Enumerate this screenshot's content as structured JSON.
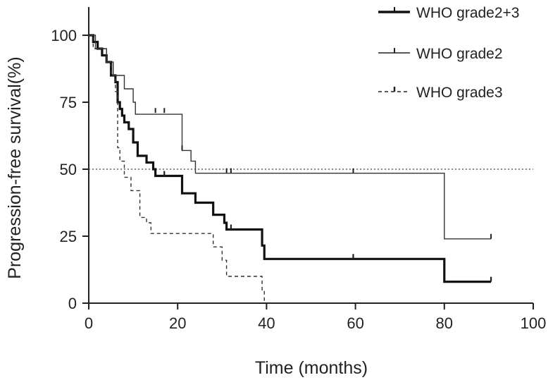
{
  "chart_data": {
    "type": "line",
    "subtype": "kaplan-meier step curve",
    "title": "",
    "xlabel": "Time (months)",
    "ylabel": "Progression-free survival(%)",
    "xlim": [
      0,
      100
    ],
    "ylim": [
      0,
      100
    ],
    "xticks": [
      "0",
      "20",
      "40",
      "60",
      "80",
      "100"
    ],
    "yticks": [
      "0",
      "25",
      "50",
      "75",
      "100"
    ],
    "grid": false,
    "legend_position": "top-right",
    "reference_line": {
      "y": 50,
      "style": "dotted"
    },
    "series": [
      {
        "name": "WHO grade2+3",
        "style": "solid-thick",
        "steps": [
          [
            0,
            100
          ],
          [
            1,
            97.5
          ],
          [
            2,
            95
          ],
          [
            3,
            92.5
          ],
          [
            4,
            90
          ],
          [
            5,
            85
          ],
          [
            6,
            82.5
          ],
          [
            6.5,
            75
          ],
          [
            7,
            72.5
          ],
          [
            7.5,
            70
          ],
          [
            8,
            67.5
          ],
          [
            9,
            65
          ],
          [
            10,
            60
          ],
          [
            11,
            55
          ],
          [
            13,
            52.5
          ],
          [
            14.5,
            50
          ],
          [
            15,
            47.5
          ],
          [
            21,
            41
          ],
          [
            24,
            37.5
          ],
          [
            28,
            33
          ],
          [
            30.5,
            30
          ],
          [
            31,
            27.5
          ],
          [
            39,
            21.5
          ],
          [
            39.5,
            16.5
          ],
          [
            80,
            8
          ]
        ],
        "end_x": 90.5,
        "censor": [
          [
            17,
            47.5
          ],
          [
            32,
            27.5
          ],
          [
            59.5,
            16.5
          ],
          [
            90.5,
            8
          ]
        ]
      },
      {
        "name": "WHO grade2",
        "style": "solid-thin",
        "steps": [
          [
            0,
            100
          ],
          [
            1.5,
            95
          ],
          [
            4,
            90
          ],
          [
            5.5,
            85
          ],
          [
            8,
            80
          ],
          [
            10,
            75
          ],
          [
            10.5,
            70.5
          ],
          [
            21,
            57
          ],
          [
            23,
            53
          ],
          [
            24,
            48.5
          ],
          [
            80,
            24
          ]
        ],
        "end_x": 90.5,
        "censor": [
          [
            15,
            71
          ],
          [
            17,
            71
          ],
          [
            21,
            57
          ],
          [
            31,
            48.5
          ],
          [
            32,
            48.5
          ],
          [
            59.5,
            48.5
          ],
          [
            90.5,
            24
          ]
        ]
      },
      {
        "name": "WHO grade3",
        "style": "dashed",
        "steps": [
          [
            0,
            100
          ],
          [
            1,
            95
          ],
          [
            4,
            90
          ],
          [
            5,
            85
          ],
          [
            6,
            79
          ],
          [
            6.5,
            58
          ],
          [
            7,
            53
          ],
          [
            8,
            47
          ],
          [
            9.5,
            42
          ],
          [
            11.5,
            32
          ],
          [
            13,
            30
          ],
          [
            14,
            26
          ],
          [
            28,
            21
          ],
          [
            30,
            16
          ],
          [
            31,
            10
          ],
          [
            39,
            5
          ],
          [
            39.5,
            0
          ]
        ],
        "end_x": 39.5,
        "censor": []
      }
    ]
  }
}
